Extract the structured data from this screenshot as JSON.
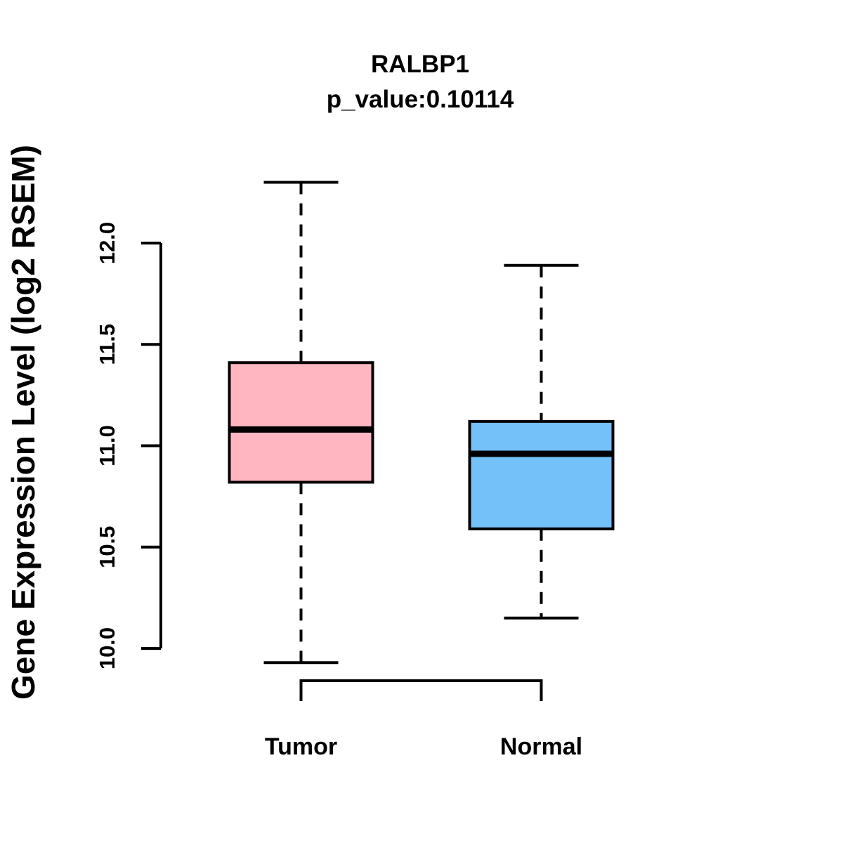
{
  "chart_data": {
    "type": "boxplot",
    "title": "RALBP1",
    "subtitle": "p_value:0.10114",
    "gene": "RALBP1",
    "p_value": "0.10114",
    "ylabel": "Gene Expression Level (log2 RSEM)",
    "xlabel": "",
    "categories": [
      "Tumor",
      "Normal"
    ],
    "series": [
      {
        "name": "Tumor",
        "low": 9.93,
        "q1": 10.82,
        "median": 11.08,
        "q3": 11.41,
        "high": 12.3,
        "fill_color": "#FFB6C1"
      },
      {
        "name": "Normal",
        "low": 10.15,
        "q1": 10.59,
        "median": 10.96,
        "q3": 11.12,
        "high": 11.89,
        "fill_color": "#74C0F8"
      }
    ],
    "yticks": [
      10.0,
      10.5,
      11.0,
      11.5,
      12.0
    ],
    "ylim": [
      10.0,
      12.0
    ],
    "grid": false,
    "legend": "none",
    "axis_color": "#000000",
    "background_color": "#ffffff"
  }
}
